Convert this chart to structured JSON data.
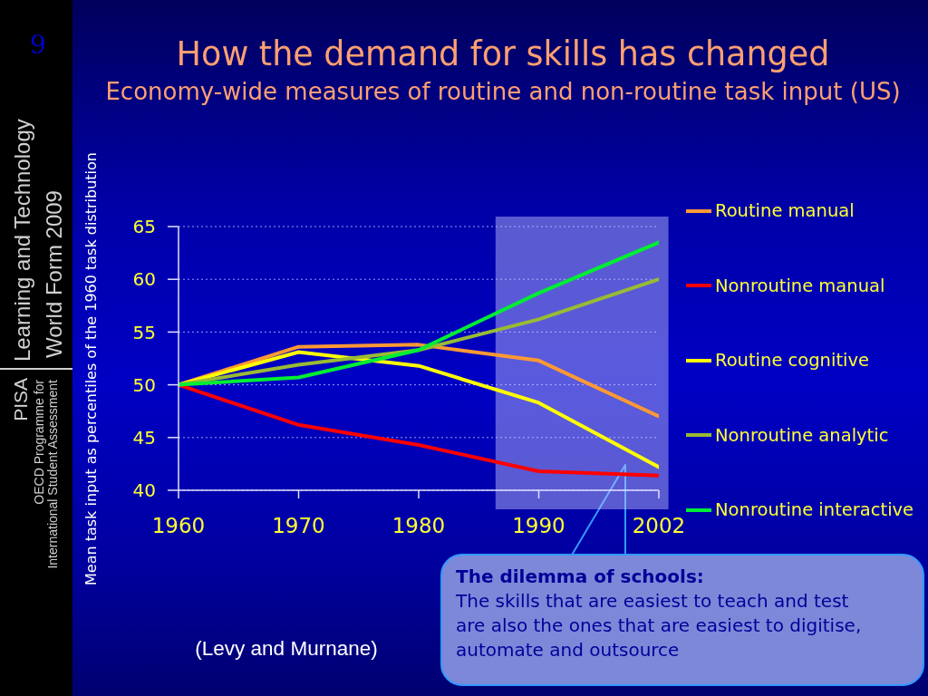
{
  "chart_data": {
    "type": "line",
    "title": "How the demand for skills has changed",
    "subtitle": "Economy-wide measures of routine and non-routine task input (US)",
    "ylabel": "Mean task input as percentiles of the 1960 task distribution",
    "categories": [
      "1960",
      "1970",
      "1980",
      "1990",
      "2002"
    ],
    "series": [
      {
        "name": "Routine manual",
        "color": "#ff9933",
        "values": [
          50,
          53.6,
          53.8,
          52.3,
          47.0
        ]
      },
      {
        "name": "Nonroutine manual",
        "color": "#ff0000",
        "values": [
          50,
          46.2,
          44.3,
          41.8,
          41.4
        ]
      },
      {
        "name": "Routine cognitive",
        "color": "#ffff00",
        "values": [
          50,
          53.1,
          51.8,
          48.3,
          42.2
        ]
      },
      {
        "name": "Nonroutine analytic",
        "color": "#99bb33",
        "values": [
          50,
          51.9,
          53.3,
          56.2,
          60.0
        ]
      },
      {
        "name": "Nonroutine interactive",
        "color": "#00ee33",
        "values": [
          50,
          50.7,
          53.3,
          58.7,
          63.5
        ]
      }
    ],
    "ylim": [
      40,
      65
    ],
    "yticks": [
      40,
      45,
      50,
      55,
      60,
      65
    ],
    "grid": "y",
    "legend": "right",
    "line_style": "solid",
    "bands": [
      {
        "axis": "x",
        "from": "1990",
        "to": "2002",
        "color": "#c8c8ff"
      }
    ],
    "annotations": [
      "9",
      "Learning and Technology",
      "World Form 2009",
      "PISA",
      "OECD Programme for",
      "International Student Assessment",
      "(Levy and Murnane)",
      "The dilemma of schools:",
      "The skills that are easiest to teach and test are also the ones that are easiest to digitise, automate and outsource"
    ]
  }
}
